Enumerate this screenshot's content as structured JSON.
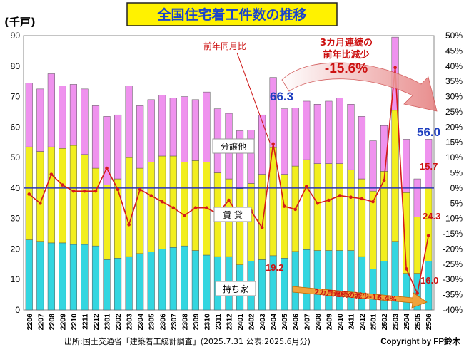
{
  "title": "全国住宅着工件数の推移",
  "unit_label": "(千戸)",
  "source": "出所:国土交通省「建築着工統計調査」(2025.7.31 公表:2025.6月分)",
  "copyright": "Copyright by FP鈴木",
  "colors": {
    "owner": "#33d6e0",
    "rental": "#f2ee1e",
    "sale": "#ef92ee",
    "line": "#d61a1a",
    "zero_line": "#2b36b5",
    "title_bg": "#fff200",
    "title_main": "#1a44cc",
    "title_accent": "#cc1111"
  },
  "annotations": {
    "yoy_legend": "前年同月比",
    "sale_label": "分譲他",
    "rental_label": "賃 貸",
    "owner_label": "持ち家",
    "three_month_line1": "3カ月連続の",
    "three_month_line2": "前年比減少",
    "three_month_value": "-15.6%",
    "two_month": "2カ月連続の減少-16.4%",
    "total_2406": "66.3",
    "total_2506": "56.0",
    "pct_2506": "15.7",
    "rental_2506": "24.3",
    "owner_2406": "19.2",
    "owner_2506": "16.0"
  },
  "chart_data": {
    "type": "bar",
    "stacked": true,
    "categories": [
      "2206",
      "2207",
      "2208",
      "2209",
      "2210",
      "2211",
      "2212",
      "2301",
      "2302",
      "2303",
      "2304",
      "2305",
      "2306",
      "2307",
      "2308",
      "2309",
      "2310",
      "2311",
      "2312",
      "2401",
      "2402",
      "2403",
      "2404",
      "2405",
      "2406",
      "2407",
      "2408",
      "2409",
      "2410",
      "2411",
      "2412",
      "2501",
      "2502",
      "2503",
      "2504",
      "2505",
      "2506"
    ],
    "series": [
      {
        "name": "持ち家",
        "axis": "left",
        "values": [
          23.0,
          22.5,
          22.0,
          22.0,
          21.5,
          21.5,
          21.0,
          16.5,
          17.0,
          17.5,
          18.5,
          19.0,
          20.0,
          20.5,
          21.0,
          19.5,
          18.0,
          17.5,
          17.5,
          14.8,
          16.0,
          16.5,
          17.8,
          17.0,
          19.2,
          19.8,
          19.5,
          19.5,
          19.5,
          19.5,
          17.5,
          13.5,
          16.0,
          22.5,
          12.0,
          12.0,
          16.0
        ]
      },
      {
        "name": "賃 貸",
        "axis": "left",
        "values": [
          30.5,
          29.5,
          31.5,
          31.0,
          32.5,
          29.5,
          25.5,
          24.5,
          26.0,
          32.5,
          28.0,
          29.5,
          30.5,
          30.0,
          27.5,
          29.5,
          30.5,
          27.5,
          25.5,
          25.0,
          25.5,
          28.0,
          35.5,
          27.5,
          28.0,
          29.5,
          28.5,
          28.5,
          28.5,
          26.5,
          25.5,
          25.5,
          29.5,
          43.0,
          26.5,
          18.5,
          24.3
        ]
      },
      {
        "name": "分譲他",
        "axis": "left",
        "values": [
          21.0,
          20.5,
          24.0,
          20.5,
          20.0,
          21.5,
          20.5,
          22.5,
          21.0,
          23.5,
          20.5,
          20.5,
          20.0,
          19.0,
          21.5,
          20.0,
          23.0,
          21.0,
          21.5,
          19.0,
          17.5,
          19.5,
          23.0,
          21.5,
          19.1,
          19.2,
          19.5,
          20.5,
          21.5,
          21.5,
          20.5,
          16.5,
          15.0,
          24.0,
          17.5,
          12.5,
          15.7
        ]
      },
      {
        "name": "前年同月比",
        "type": "line",
        "axis": "right",
        "values": [
          -2,
          -5,
          4.5,
          1,
          -1,
          -1,
          -1,
          6.5,
          -0.5,
          -12,
          -0.5,
          -2.5,
          -4.5,
          -6.5,
          -9,
          -6.5,
          -6.5,
          -8.5,
          -4,
          -9.5,
          -7.5,
          -13,
          14.5,
          -6,
          -7,
          0.5,
          -5,
          -4,
          -2.5,
          -3,
          -3.5,
          -4.5,
          2.5,
          39.5,
          -26.5,
          -34.5,
          -15.6
        ]
      }
    ],
    "yleft": {
      "min": 0,
      "max": 90,
      "ticks": [
        0,
        10,
        20,
        30,
        40,
        50,
        60,
        70,
        80,
        90
      ]
    },
    "yright": {
      "min": -40,
      "max": 50,
      "ticks": [
        "-40%",
        "-35%",
        "-30%",
        "-25%",
        "-20%",
        "-15%",
        "-10%",
        "-5%",
        "0%",
        "5%",
        "10%",
        "15%",
        "20%",
        "25%",
        "30%",
        "35%",
        "40%",
        "45%",
        "50%"
      ]
    },
    "grid": false,
    "legend": "inline"
  }
}
